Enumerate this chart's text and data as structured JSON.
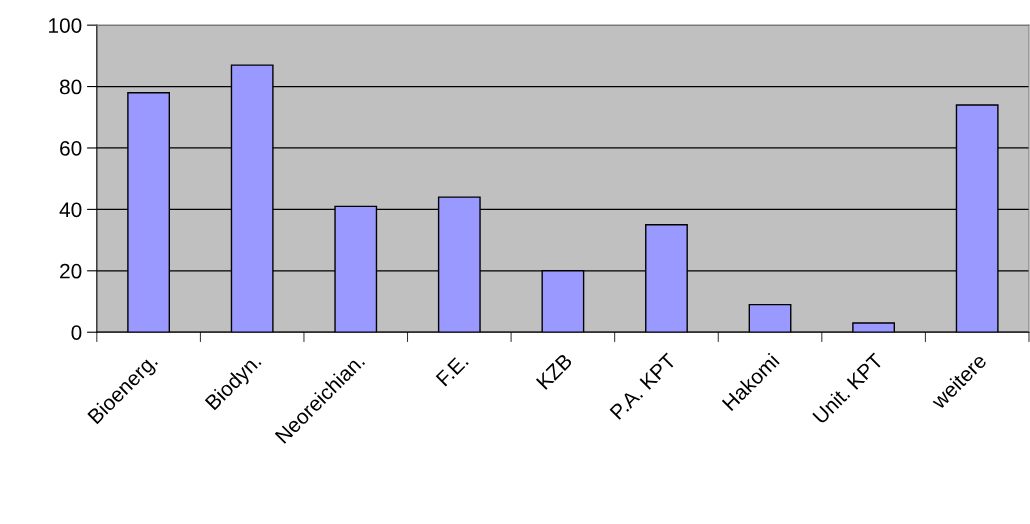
{
  "chart_data": {
    "type": "bar",
    "categories": [
      "Bioenerg.",
      "Biodyn.",
      "Neoreichian.",
      "F.E.",
      "KZB",
      "P.A. KPT",
      "Hakomi",
      "Unit. KPT",
      "weitere"
    ],
    "values": [
      78,
      87,
      41,
      44,
      20,
      35,
      9,
      3,
      74
    ],
    "color": "#9999ff",
    "ylim": [
      0,
      100
    ],
    "yticks": [
      0,
      20,
      40,
      60,
      80,
      100
    ],
    "grid": "y",
    "legend": false
  }
}
